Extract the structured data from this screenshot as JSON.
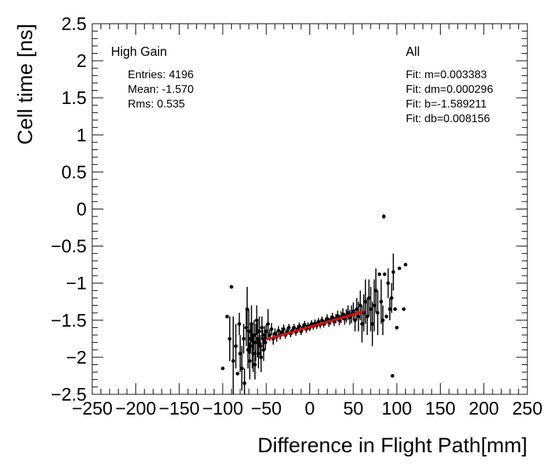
{
  "chart_data": {
    "type": "scatter",
    "title": "",
    "xlabel": "Difference in Flight Path[mm]",
    "ylabel": "Cell time [ns]",
    "xlim": [
      -250,
      250
    ],
    "ylim": [
      -2.5,
      2.5
    ],
    "x_ticks": [
      -250,
      -200,
      -150,
      -100,
      -50,
      0,
      50,
      100,
      150,
      200,
      250
    ],
    "x_tick_labels": [
      "−250",
      "−200",
      "−150",
      "−100",
      "−50",
      "0",
      "50",
      "100",
      "150",
      "200",
      "250"
    ],
    "y_ticks": [
      -2.5,
      -2,
      -1.5,
      -1,
      -0.5,
      0,
      0.5,
      1,
      1.5,
      2,
      2.5
    ],
    "y_tick_labels": [
      "−2.5",
      "−2",
      "−1.5",
      "−1",
      "−0.5",
      "0",
      "0.5",
      "1",
      "1.5",
      "2",
      "2.5"
    ],
    "grid": false,
    "series": [
      {
        "points": [
          [
            -100,
            -2.15,
            0.0
          ],
          [
            -95,
            -1.45,
            0.0
          ],
          [
            -92,
            -1.75,
            0.3
          ],
          [
            -90,
            -1.05,
            0.0
          ],
          [
            -88,
            -2.05,
            0.6
          ],
          [
            -85,
            -1.85,
            0.3
          ],
          [
            -83,
            -2.22,
            0.0
          ],
          [
            -81,
            -1.55,
            0.15
          ],
          [
            -80,
            -1.95,
            0.25
          ],
          [
            -78,
            -2.15,
            0.3
          ],
          [
            -76,
            -1.75,
            0.2
          ],
          [
            -75,
            -2.35,
            0.2
          ],
          [
            -73,
            -1.6,
            0.25
          ],
          [
            -72,
            -1.35,
            0.3
          ],
          [
            -71,
            -1.9,
            0.25
          ],
          [
            -70,
            -1.65,
            0.3
          ],
          [
            -69,
            -2.05,
            0.25
          ],
          [
            -68,
            -1.75,
            0.2
          ],
          [
            -67,
            -1.55,
            0.25
          ],
          [
            -66,
            -1.85,
            0.3
          ],
          [
            -65,
            -1.95,
            0.25
          ],
          [
            -64,
            -1.7,
            0.2
          ],
          [
            -63,
            -2.1,
            0.2
          ],
          [
            -62,
            -1.8,
            0.25
          ],
          [
            -61,
            -1.5,
            0.2
          ],
          [
            -60,
            -1.75,
            0.25
          ],
          [
            -59,
            -1.95,
            0.2
          ],
          [
            -58,
            -1.65,
            0.2
          ],
          [
            -57,
            -1.85,
            0.15
          ],
          [
            -56,
            -2.0,
            0.2
          ],
          [
            -55,
            -1.6,
            0.15
          ],
          [
            -54,
            -1.75,
            0.12
          ],
          [
            -53,
            -1.9,
            0.15
          ],
          [
            -52,
            -1.7,
            0.12
          ],
          [
            -51,
            -1.8,
            0.1
          ],
          [
            -50,
            -1.65,
            0.1
          ],
          [
            -48,
            -1.55,
            0.2
          ],
          [
            -46,
            -1.7,
            0.08
          ],
          [
            -44,
            -1.62,
            0.08
          ],
          [
            -42,
            -1.75,
            0.08
          ],
          [
            -40,
            -1.68,
            0.07
          ],
          [
            -38,
            -1.72,
            0.07
          ],
          [
            -36,
            -1.64,
            0.06
          ],
          [
            -34,
            -1.7,
            0.06
          ],
          [
            -32,
            -1.66,
            0.06
          ],
          [
            -30,
            -1.62,
            0.06
          ],
          [
            -28,
            -1.7,
            0.05
          ],
          [
            -26,
            -1.65,
            0.05
          ],
          [
            -24,
            -1.6,
            0.05
          ],
          [
            -22,
            -1.68,
            0.05
          ],
          [
            -20,
            -1.64,
            0.05
          ],
          [
            -18,
            -1.6,
            0.05
          ],
          [
            -16,
            -1.66,
            0.05
          ],
          [
            -14,
            -1.62,
            0.05
          ],
          [
            -12,
            -1.58,
            0.05
          ],
          [
            -10,
            -1.65,
            0.05
          ],
          [
            -8,
            -1.6,
            0.05
          ],
          [
            -6,
            -1.56,
            0.05
          ],
          [
            -4,
            -1.62,
            0.05
          ],
          [
            -2,
            -1.58,
            0.05
          ],
          [
            0,
            -1.6,
            0.05
          ],
          [
            2,
            -1.55,
            0.05
          ],
          [
            4,
            -1.58,
            0.05
          ],
          [
            6,
            -1.54,
            0.05
          ],
          [
            8,
            -1.57,
            0.05
          ],
          [
            10,
            -1.52,
            0.05
          ],
          [
            12,
            -1.56,
            0.05
          ],
          [
            14,
            -1.5,
            0.05
          ],
          [
            16,
            -1.55,
            0.05
          ],
          [
            18,
            -1.52,
            0.05
          ],
          [
            20,
            -1.48,
            0.06
          ],
          [
            22,
            -1.53,
            0.06
          ],
          [
            24,
            -1.5,
            0.06
          ],
          [
            26,
            -1.46,
            0.06
          ],
          [
            28,
            -1.52,
            0.06
          ],
          [
            30,
            -1.48,
            0.06
          ],
          [
            32,
            -1.44,
            0.07
          ],
          [
            34,
            -1.5,
            0.07
          ],
          [
            36,
            -1.46,
            0.08
          ],
          [
            38,
            -1.42,
            0.08
          ],
          [
            40,
            -1.48,
            0.08
          ],
          [
            42,
            -1.44,
            0.09
          ],
          [
            44,
            -1.4,
            0.1
          ],
          [
            46,
            -1.46,
            0.1
          ],
          [
            48,
            -1.42,
            0.12
          ],
          [
            50,
            -1.38,
            0.12
          ],
          [
            52,
            -1.5,
            0.15
          ],
          [
            54,
            -1.35,
            0.15
          ],
          [
            56,
            -1.45,
            0.2
          ],
          [
            58,
            -1.3,
            0.2
          ],
          [
            60,
            -1.55,
            0.25
          ],
          [
            62,
            -1.4,
            0.25
          ],
          [
            64,
            -1.25,
            0.3
          ],
          [
            66,
            -1.45,
            0.25
          ],
          [
            68,
            -1.2,
            0.25
          ],
          [
            70,
            -1.35,
            0.3
          ],
          [
            72,
            -1.55,
            0.3
          ],
          [
            74,
            -1.3,
            0.35
          ],
          [
            76,
            -1.1,
            0.3
          ],
          [
            78,
            -1.4,
            0.3
          ],
          [
            80,
            -0.88,
            0.0
          ],
          [
            82,
            -1.25,
            0.3
          ],
          [
            84,
            -1.5,
            0.2
          ],
          [
            85,
            -0.1,
            0.03
          ],
          [
            86,
            -0.88,
            0.0
          ],
          [
            88,
            -1.45,
            0.0
          ],
          [
            90,
            -1.0,
            0.2
          ],
          [
            92,
            -1.35,
            0.15
          ],
          [
            94,
            -1.2,
            0.2
          ],
          [
            95,
            -2.25,
            0.0
          ],
          [
            96,
            -0.85,
            0.25
          ],
          [
            98,
            -1.35,
            0.0
          ],
          [
            100,
            -1.6,
            0.0
          ],
          [
            103,
            -0.8,
            0.0
          ],
          [
            108,
            -1.35,
            0.0
          ],
          [
            110,
            -0.75,
            0.0
          ]
        ]
      }
    ],
    "fit_line": {
      "x": [
        -50,
        62
      ],
      "y": [
        -1.76,
        -1.38
      ],
      "color": "#ff0000"
    }
  },
  "annotations": {
    "gain": "High Gain",
    "entries": "Entries: 4196",
    "mean": "Mean: -1.570",
    "rms": "Rms: 0.535",
    "selection": "All",
    "fit_m": "Fit: m=0.003383",
    "fit_dm": "Fit: dm=0.000296",
    "fit_b": "Fit: b=-1.589211",
    "fit_db": "Fit: db=0.008156"
  }
}
